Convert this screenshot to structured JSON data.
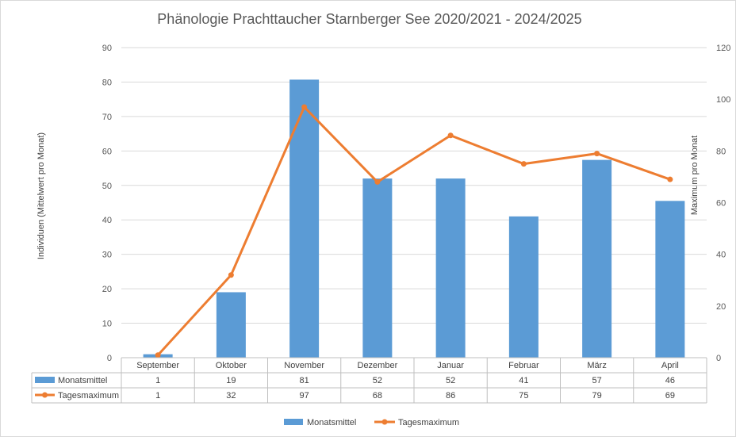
{
  "chart_data": {
    "type": "bar",
    "title": "Phänologie Prachttaucher Starnberger See 2020/2021 - 2024/2025",
    "categories": [
      "September",
      "Oktober",
      "November",
      "Dezember",
      "Januar",
      "Februar",
      "März",
      "April"
    ],
    "ylabel": "Individuen (Mittelwert pro Monat)",
    "y2label": "Maximum pro Monat",
    "ylim": [
      0,
      90
    ],
    "y2lim": [
      0,
      120
    ],
    "y_ticks": [
      0,
      10,
      20,
      30,
      40,
      50,
      60,
      70,
      80,
      90
    ],
    "y2_ticks": [
      0,
      20,
      40,
      60,
      80,
      100,
      120
    ],
    "grid": true,
    "legend_position": "bottom",
    "data_table": true,
    "series": [
      {
        "name": "Monatsmittel",
        "type": "bar",
        "axis": "left",
        "color": "#5b9bd5",
        "values": [
          1,
          19,
          81,
          52,
          52,
          41,
          57,
          46
        ],
        "table_values": [
          "1",
          "19",
          "81",
          "52",
          "52",
          "41",
          "57",
          "46"
        ],
        "bar_values": [
          1,
          19,
          80.7,
          52,
          52,
          41,
          57.4,
          45.5
        ]
      },
      {
        "name": "Tagesmaximum",
        "type": "line",
        "axis": "right",
        "color": "#ed7d31",
        "values": [
          1,
          32,
          97,
          68,
          86,
          75,
          79,
          69
        ],
        "table_values": [
          "1",
          "32",
          "97",
          "68",
          "86",
          "75",
          "79",
          "69"
        ]
      }
    ]
  }
}
